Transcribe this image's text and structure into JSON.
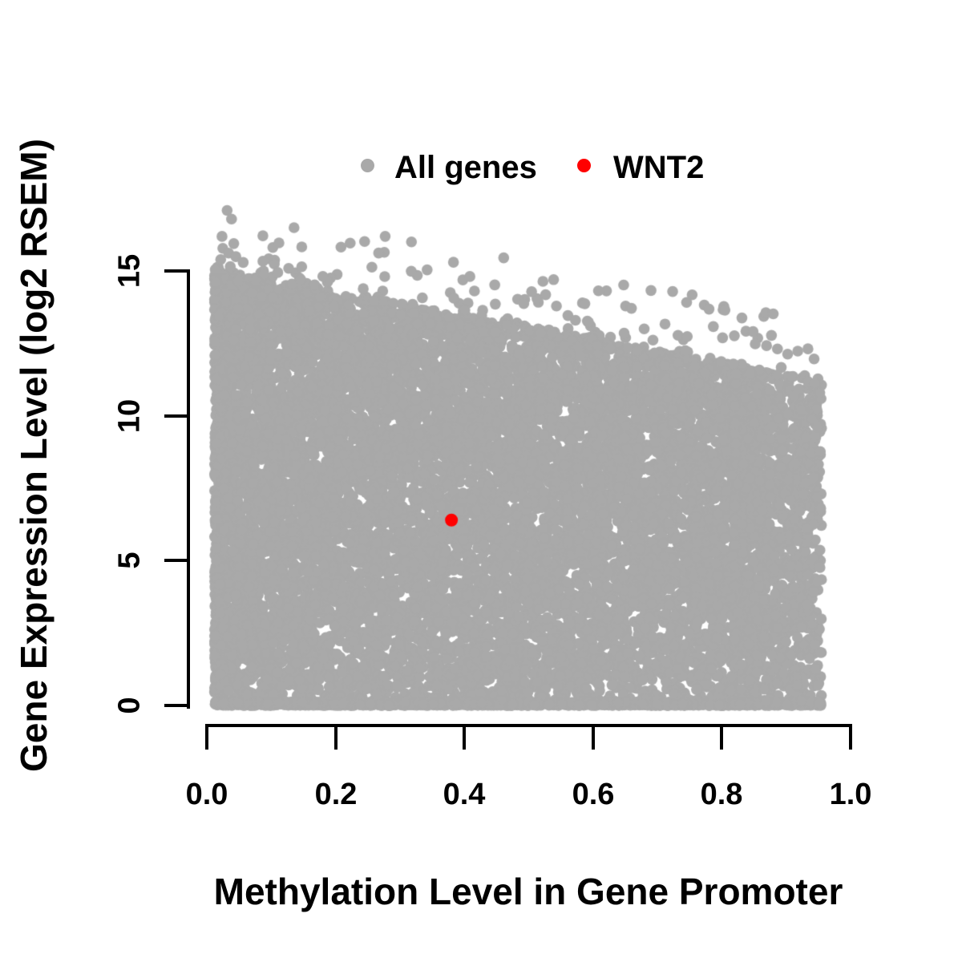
{
  "legend": {
    "items": [
      {
        "label": "All genes",
        "color": "#A9A9A9"
      },
      {
        "label": "WNT2",
        "color": "#FF0000"
      }
    ]
  },
  "chart_data": {
    "type": "scatter",
    "title": "",
    "xlabel": "Methylation Level in Gene Promoter",
    "ylabel": "Gene Expression Level (log2 RSEM)",
    "x": {
      "range": [
        0,
        1.0
      ],
      "ticks": [
        0.0,
        0.2,
        0.4,
        0.6,
        0.8,
        1.0
      ],
      "tick_labels": [
        "0.0",
        "0.2",
        "0.4",
        "0.6",
        "0.8",
        "1.0"
      ]
    },
    "y": {
      "range": [
        0,
        17.2
      ],
      "ticks": [
        0,
        5,
        10,
        15
      ],
      "tick_labels": [
        "0",
        "5",
        "10",
        "15"
      ]
    },
    "grid": false,
    "legend_position": "top-center",
    "series": [
      {
        "name": "All genes",
        "color": "#A9A9A9",
        "marker": "filled-circle",
        "marker_radius_px": 6.8,
        "summary": "Dense cloud of ~13000 genes; x spans 0.01-0.96, y spans 0-17.2; upper envelope declines roughly linearly from ~15 at x=0 to ~11.2 at x=0.95; very dense band at y=0 across full x range; density fades for x>0.82; sparse outliers up to ~2.3 above envelope (max ~17.1 near x=0.035)",
        "generator": {
          "seed": 42,
          "n": 13000,
          "x_min": 0.012,
          "x_solid_max": 0.82,
          "x_max": 0.955,
          "branch_weights": {
            "left_biased": 0.8,
            "right_fade": 0.12,
            "uniform": 0.08
          },
          "left_bias_pow": 1.25,
          "right_fade_pow": 1.6,
          "envelope_intercept": 15.1,
          "envelope_slope": -4.1,
          "bottom_band_prob": 0.1,
          "bottom_band_max_y": 0.12,
          "outlier_prob": 0.015,
          "outlier_max_extra": 2.3,
          "outlier_pow": 1.8,
          "y_pow": 0.9,
          "y_cap": 17.2
        }
      },
      {
        "name": "WNT2",
        "color": "#FF0000",
        "marker": "filled-circle",
        "marker_radius_px": 8,
        "points": [
          [
            0.38,
            6.4
          ]
        ]
      }
    ]
  }
}
